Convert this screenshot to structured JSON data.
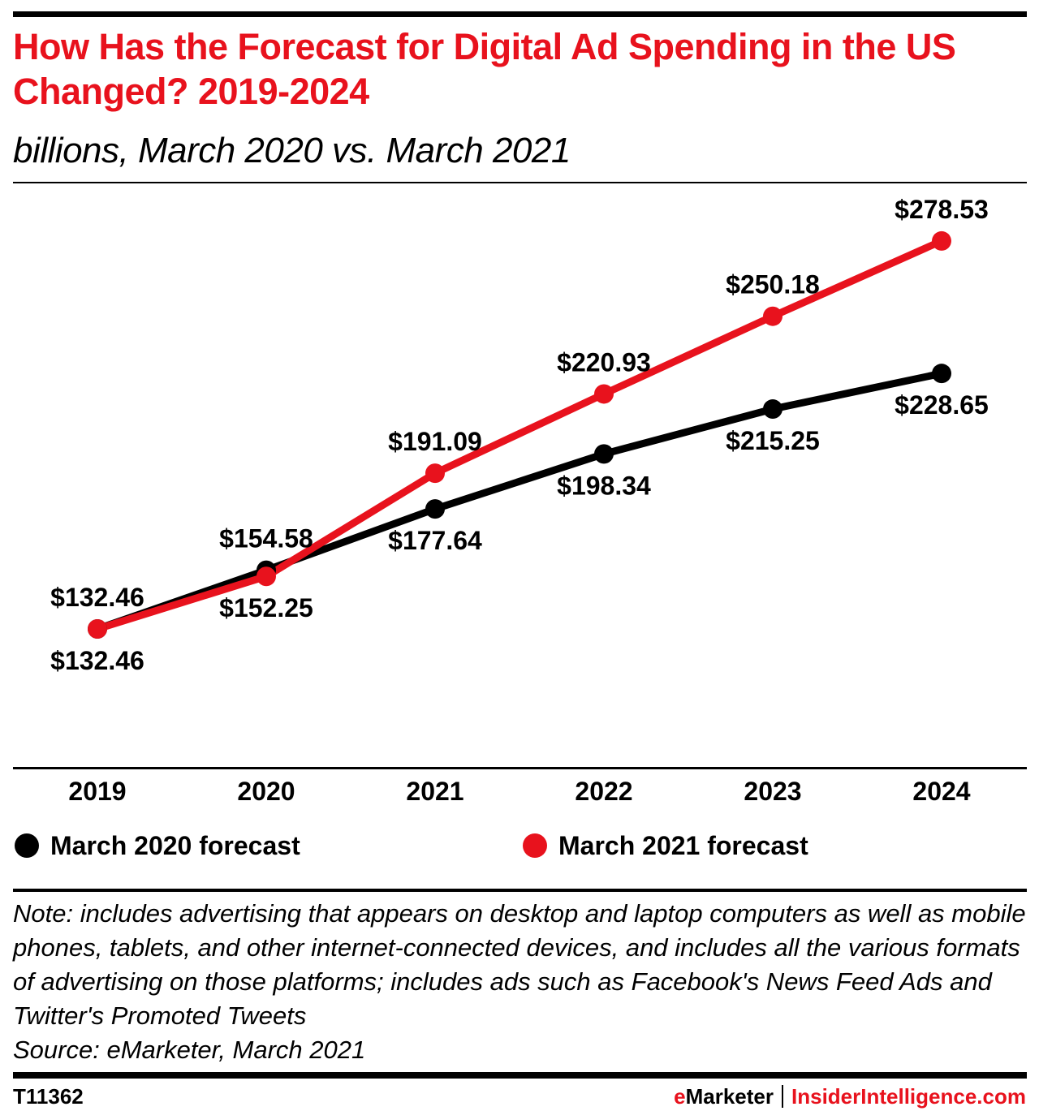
{
  "header": {
    "title": "How Has the Forecast for Digital Ad Spending in the US Changed? 2019-2024",
    "subtitle": "billions, March 2020 vs. March 2021"
  },
  "chart_data": {
    "type": "line",
    "title": "How Has the Forecast for Digital Ad Spending in the US Changed? 2019-2024",
    "subtitle": "billions, March 2020 vs. March 2021",
    "xlabel": "",
    "ylabel": "billions",
    "x": [
      "2019",
      "2020",
      "2021",
      "2022",
      "2023",
      "2024"
    ],
    "ylim": [
      65,
      290
    ],
    "grid": false,
    "legend_position": "bottom",
    "series": [
      {
        "name": "March 2020 forecast",
        "color": "#000000",
        "values": [
          132.46,
          154.58,
          177.64,
          198.34,
          215.25,
          228.65
        ],
        "labels": [
          "$132.46",
          "$154.58",
          "$177.64",
          "$198.34",
          "$215.25",
          "$228.65"
        ],
        "label_side": [
          "above",
          "above",
          "below",
          "below",
          "below",
          "below"
        ]
      },
      {
        "name": "March 2021 forecast",
        "color": "#e8121d",
        "values": [
          132.46,
          152.25,
          191.09,
          220.93,
          250.18,
          278.53
        ],
        "labels": [
          "$132.46",
          "$152.25",
          "$191.09",
          "$220.93",
          "$250.18",
          "$278.53"
        ],
        "label_side": [
          "below",
          "below",
          "above",
          "above",
          "above",
          "above"
        ]
      }
    ]
  },
  "footer": {
    "note": "Note: includes advertising that appears on desktop and laptop computers as well as mobile phones, tablets, and other internet-connected devices, and includes all the various formats of advertising on those platforms; includes ads such as Facebook's News Feed Ads and Twitter's Promoted Tweets",
    "source": "Source: eMarketer, March 2021",
    "chart_id": "T11362",
    "brand_left": "eMarketer",
    "brand_right": "InsiderIntelligence.com"
  }
}
